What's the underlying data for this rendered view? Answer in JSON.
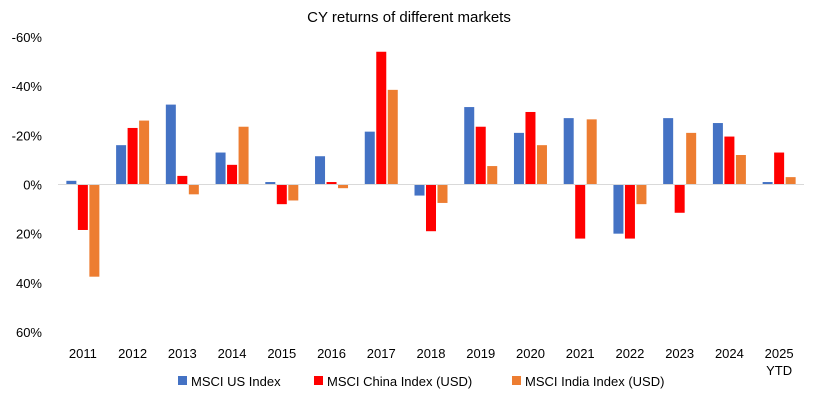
{
  "chart_data": {
    "type": "bar",
    "title": "CY returns of different markets",
    "categories": [
      [
        "2011"
      ],
      [
        "2012"
      ],
      [
        "2013"
      ],
      [
        "2014"
      ],
      [
        "2015"
      ],
      [
        "2016"
      ],
      [
        "2017"
      ],
      [
        "2018"
      ],
      [
        "2019"
      ],
      [
        "2020"
      ],
      [
        "2021"
      ],
      [
        "2022"
      ],
      [
        "2023"
      ],
      [
        "2024"
      ],
      [
        "2025",
        "YTD"
      ]
    ],
    "y_ticks": [
      "-60%",
      "-40%",
      "-20%",
      "0%",
      "20%",
      "40%",
      "60%"
    ],
    "ylim": [
      -60,
      60
    ],
    "grid": false,
    "legend_position": "bottom",
    "series": [
      {
        "name": "MSCI US Index",
        "color": "#4472C4",
        "values": [
          1.5,
          16,
          32.5,
          13,
          1,
          11.5,
          21.5,
          -4.5,
          31.5,
          21,
          27,
          -20,
          27,
          25,
          1
        ]
      },
      {
        "name": "MSCI China Index (USD)",
        "color": "#FF0000",
        "values": [
          -18.5,
          23,
          3.5,
          8,
          -8,
          1,
          54,
          -19,
          23.5,
          29.5,
          -22,
          -22,
          -11.5,
          19.5,
          13
        ]
      },
      {
        "name": "MSCI India Index (USD)",
        "color": "#ED7D31",
        "values": [
          -37.5,
          26,
          -4,
          23.5,
          -6.5,
          -1.5,
          38.5,
          -7.5,
          7.5,
          16,
          26.5,
          -8,
          21,
          12,
          3
        ]
      }
    ]
  }
}
